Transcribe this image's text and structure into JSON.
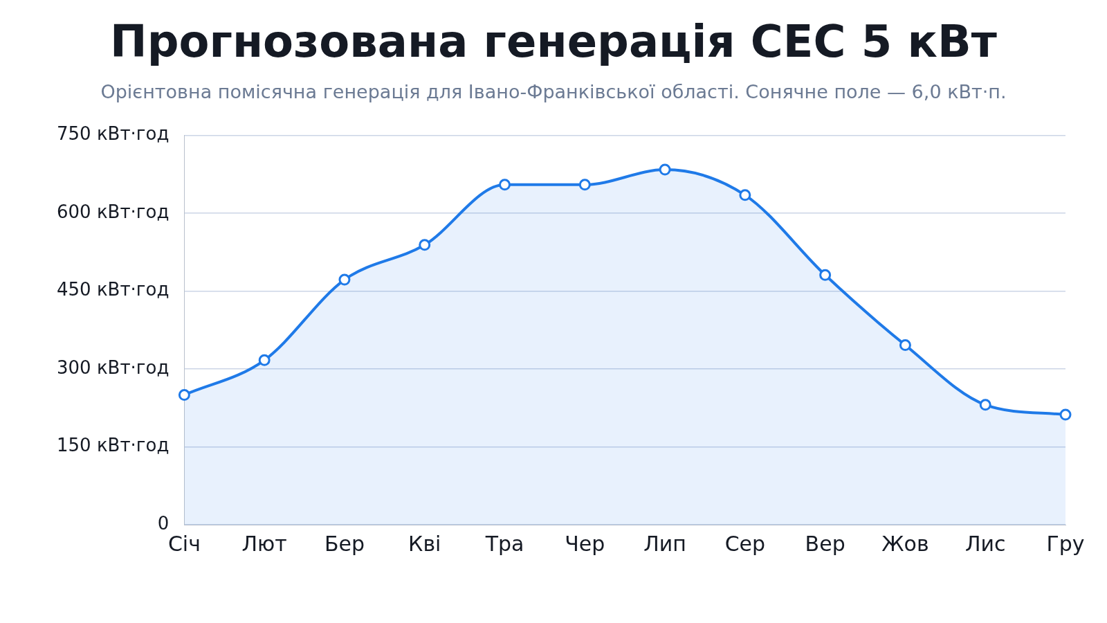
{
  "chart_data": {
    "type": "area",
    "title": "Прогнозована генерація СЕС 5 кВт",
    "subtitle": "Орієнтовна помісячна генерація для Івано-Франківської області. Сонячне поле — 6,0 кВт·п.",
    "categories": [
      "Січ",
      "Лют",
      "Бер",
      "Кві",
      "Тра",
      "Чер",
      "Лип",
      "Сер",
      "Вер",
      "Жов",
      "Лис",
      "Гру"
    ],
    "series": [
      {
        "color": "#1f7ae8",
        "values": [
          250,
          317,
          472,
          539,
          655,
          655,
          684,
          635,
          481,
          346,
          231,
          212
        ]
      }
    ],
    "ylim": [
      0,
      750
    ],
    "yticks": [
      0,
      {
        "value": 150,
        "label": "150 кВт·год"
      },
      {
        "value": 300,
        "label": "300 кВт·год"
      },
      {
        "value": 450,
        "label": "450 кВт·год"
      },
      {
        "value": 600,
        "label": "600 кВт·год"
      },
      {
        "value": 750,
        "label": "750 кВт·год"
      }
    ],
    "grid": "y",
    "marker": "circle",
    "line_style": "solid"
  }
}
